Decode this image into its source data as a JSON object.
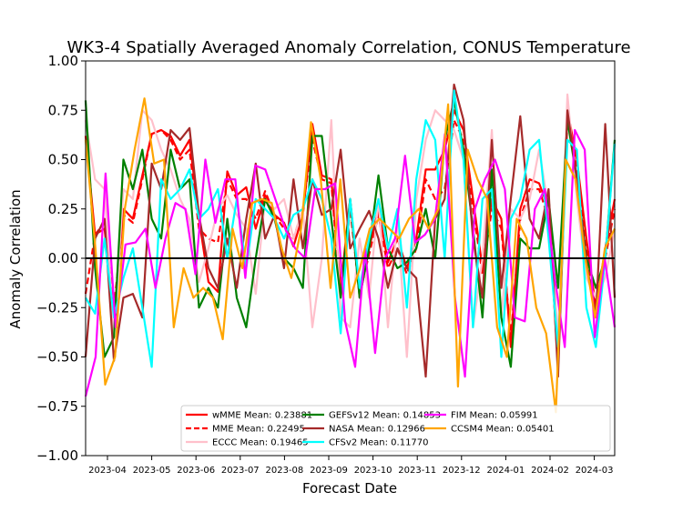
{
  "chart_data": {
    "type": "line",
    "title": "WK3-4 Spatially Averaged Anomaly Correlation, CONUS Temperature",
    "xlabel": "Forecast Date",
    "ylabel": "Anomaly Correlation",
    "ylim": [
      -1.0,
      1.0
    ],
    "yticks": [
      "1.00",
      "0.75",
      "0.50",
      "0.25",
      "0.00",
      "−0.25",
      "−0.50",
      "−0.75",
      "−1.00"
    ],
    "xticks": [
      "2023-04",
      "2023-05",
      "2023-06",
      "2023-07",
      "2023-08",
      "2023-09",
      "2023-10",
      "2023-11",
      "2023-12",
      "2024-01",
      "2024-02",
      "2024-03"
    ],
    "grid": false,
    "legend": "lower-right",
    "series": [
      {
        "name": "wMME Mean: 0.23881",
        "color": "#ff0000",
        "dash": "solid",
        "width": 2.2,
        "values": [
          0.62,
          0.12,
          0.15,
          -0.3,
          0.25,
          0.2,
          0.42,
          0.63,
          0.65,
          0.62,
          0.52,
          0.6,
          0.2,
          -0.12,
          -0.17,
          0.44,
          0.32,
          0.36,
          0.15,
          0.32,
          0.22,
          0.18,
          0.06,
          0.22,
          0.68,
          0.42,
          0.4,
          -0.15,
          0.3,
          -0.2,
          0.05,
          0.25,
          -0.02,
          0.1,
          -0.05,
          0.1,
          0.45,
          0.45,
          0.55,
          0.75,
          0.65,
          0.3,
          -0.05,
          0.3,
          0.2,
          -0.45,
          0.25,
          0.4,
          0.38,
          0.25,
          -0.55,
          0.75,
          0.5,
          0.1,
          -0.25,
          0.05,
          0.3
        ]
      },
      {
        "name": "MME Mean: 0.22495",
        "color": "#ff0000",
        "dash": "dashed",
        "width": 2.2,
        "values": [
          -0.18,
          0.12,
          0.18,
          -0.25,
          0.22,
          0.18,
          0.4,
          0.63,
          0.65,
          0.6,
          0.5,
          0.55,
          0.15,
          0.1,
          0.08,
          0.4,
          0.3,
          0.3,
          0.2,
          0.34,
          0.22,
          0.15,
          0.1,
          0.25,
          0.6,
          0.4,
          0.38,
          -0.2,
          0.25,
          -0.18,
          0.02,
          0.22,
          -0.05,
          0.05,
          -0.08,
          0.05,
          0.4,
          0.3,
          0.35,
          0.7,
          0.6,
          0.25,
          -0.08,
          0.25,
          0.15,
          -0.4,
          0.2,
          0.35,
          0.35,
          0.2,
          -0.5,
          0.7,
          0.45,
          0.05,
          -0.28,
          0.0,
          0.25
        ]
      },
      {
        "name": "ECCC Mean: 0.19465",
        "color": "#ffc0cb",
        "dash": "solid",
        "width": 2.2,
        "values": [
          0.7,
          0.4,
          0.35,
          -0.4,
          0.35,
          0.3,
          0.75,
          0.7,
          0.55,
          0.45,
          0.3,
          0.2,
          -0.12,
          0.05,
          0.25,
          0.32,
          0.22,
          0.15,
          -0.18,
          0.3,
          0.25,
          0.3,
          0.1,
          0.25,
          -0.35,
          0.0,
          0.7,
          -0.3,
          -0.35,
          0.1,
          -0.2,
          0.3,
          -0.35,
          0.2,
          -0.5,
          0.3,
          0.6,
          0.75,
          0.7,
          0.65,
          0.5,
          -0.35,
          0.0,
          0.65,
          -0.3,
          0.25,
          0.2,
          0.3,
          0.55,
          0.25,
          -0.4,
          0.83,
          0.3,
          -0.1,
          -0.2,
          -0.1,
          0.15
        ]
      },
      {
        "name": "GEFSv12 Mean: 0.14853",
        "color": "#008000",
        "dash": "solid",
        "width": 2.2,
        "values": [
          0.8,
          -0.05,
          -0.5,
          -0.4,
          0.5,
          0.35,
          0.55,
          0.2,
          0.1,
          0.55,
          0.35,
          0.4,
          -0.25,
          -0.15,
          -0.25,
          0.2,
          -0.2,
          -0.35,
          0.0,
          0.3,
          0.2,
          0.0,
          -0.05,
          -0.15,
          0.62,
          0.62,
          0.2,
          -0.2,
          0.3,
          -0.2,
          0.05,
          0.42,
          0.05,
          -0.05,
          -0.02,
          0.05,
          0.25,
          0.0,
          0.6,
          0.8,
          0.55,
          0.15,
          -0.3,
          0.45,
          -0.3,
          -0.55,
          0.1,
          0.05,
          0.05,
          0.3,
          -0.15,
          0.7,
          0.4,
          0.0,
          -0.15,
          0.0,
          0.6
        ]
      },
      {
        "name": "NASA Mean: 0.12966",
        "color": "#a52a2a",
        "dash": "solid",
        "width": 2.2,
        "values": [
          -0.5,
          0.1,
          0.2,
          -0.52,
          -0.2,
          -0.18,
          -0.3,
          0.48,
          0.35,
          0.65,
          0.6,
          0.66,
          0.22,
          -0.05,
          -0.15,
          0.1,
          -0.15,
          0.2,
          0.48,
          0.1,
          0.22,
          -0.05,
          0.4,
          0.05,
          0.4,
          0.22,
          0.25,
          0.55,
          0.05,
          0.15,
          0.24,
          0.1,
          -0.15,
          0.05,
          -0.05,
          -0.1,
          -0.6,
          0.2,
          0.3,
          0.88,
          0.7,
          0.1,
          -0.2,
          0.6,
          -0.15,
          0.3,
          0.72,
          0.2,
          0.1,
          0.35,
          -0.6,
          0.75,
          0.4,
          -0.02,
          -0.3,
          0.68,
          -0.2
        ]
      },
      {
        "name": "CFSv2 Mean: 0.11770",
        "color": "#00ffff",
        "dash": "solid",
        "width": 2.2,
        "values": [
          -0.2,
          -0.28,
          0.1,
          -0.3,
          -0.1,
          0.05,
          -0.25,
          -0.55,
          0.4,
          0.3,
          0.35,
          0.45,
          0.2,
          0.25,
          0.35,
          0.0,
          0.3,
          -0.05,
          0.3,
          0.25,
          0.2,
          0.1,
          0.22,
          0.25,
          0.4,
          0.3,
          0.1,
          -0.38,
          0.3,
          -0.15,
          0.1,
          0.3,
          0.05,
          0.25,
          -0.25,
          0.4,
          0.7,
          0.6,
          0.0,
          0.85,
          0.5,
          -0.35,
          0.3,
          0.35,
          -0.5,
          0.2,
          0.3,
          0.55,
          0.6,
          0.1,
          -0.45,
          0.6,
          0.55,
          -0.25,
          -0.45,
          0.0,
          0.58
        ]
      },
      {
        "name": "FIM Mean: 0.05991",
        "color": "#ff00ff",
        "dash": "solid",
        "width": 2.2,
        "values": [
          -0.7,
          -0.5,
          0.43,
          -0.35,
          0.07,
          0.08,
          0.15,
          -0.15,
          0.1,
          0.28,
          0.25,
          -0.08,
          0.5,
          0.18,
          0.4,
          0.4,
          -0.1,
          0.47,
          0.45,
          0.3,
          0.15,
          0.05,
          0.0,
          0.35,
          0.35,
          0.38,
          -0.32,
          -0.55,
          0.05,
          -0.48,
          0.0,
          0.1,
          0.52,
          0.08,
          0.12,
          0.2,
          0.63,
          -0.2,
          -0.6,
          0.25,
          0.4,
          0.5,
          0.35,
          -0.3,
          -0.32,
          0.25,
          0.35,
          -0.1,
          -0.45,
          0.65,
          0.55,
          -0.4,
          0.0,
          -0.35
        ]
      },
      {
        "name": "CCSM4 Mean: 0.05401",
        "color": "#ffa500",
        "dash": "solid",
        "width": 2.2,
        "values": [
          0.6,
          0.05,
          -0.64,
          -0.5,
          0.25,
          0.55,
          0.81,
          0.48,
          0.5,
          -0.35,
          -0.05,
          -0.2,
          -0.15,
          -0.2,
          -0.41,
          0.15,
          -0.05,
          0.28,
          0.3,
          0.28,
          0.05,
          -0.1,
          0.15,
          0.69,
          0.4,
          -0.15,
          0.4,
          -0.2,
          -0.05,
          0.15,
          0.2,
          0.15,
          0.1,
          0.2,
          0.25,
          0.15,
          0.25,
          0.78,
          -0.65,
          0.55,
          0.4,
          0.3,
          -0.35,
          -0.5,
          0.2,
          0.1,
          -0.25,
          -0.38,
          -0.78,
          0.5,
          0.4,
          0.0,
          -0.3,
          0.05,
          0.15
        ]
      }
    ]
  }
}
